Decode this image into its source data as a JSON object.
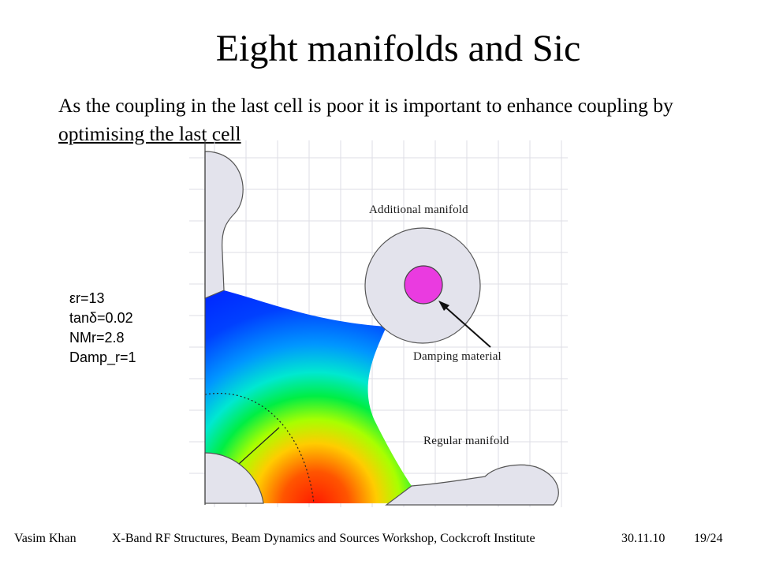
{
  "slide": {
    "title": "Eight manifolds and Sic",
    "intro_text": "As the coupling in the last cell is poor it is important to enhance coupling by ",
    "intro_underlined": "optimising the last cell"
  },
  "parameters": [
    "εr=13",
    "tanδ=0.02",
    "NMr=2.8",
    "Damp_r=1"
  ],
  "figure": {
    "labels": {
      "additional_manifold": "Additional manifold",
      "damping_material": "Damping material",
      "regular_manifold": "Regular manifold"
    },
    "colors": {
      "geometry_fill": "#e3e3ec",
      "damping_material": "#ea3be0",
      "field_high": "#ff1a00",
      "field_low": "#0028ff"
    }
  },
  "footer": {
    "author": "Vasim Khan",
    "event": "X-Band RF Structures, Beam Dynamics and Sources Workshop, Cockcroft Institute",
    "date": "30.11.10",
    "page": "19/24"
  }
}
